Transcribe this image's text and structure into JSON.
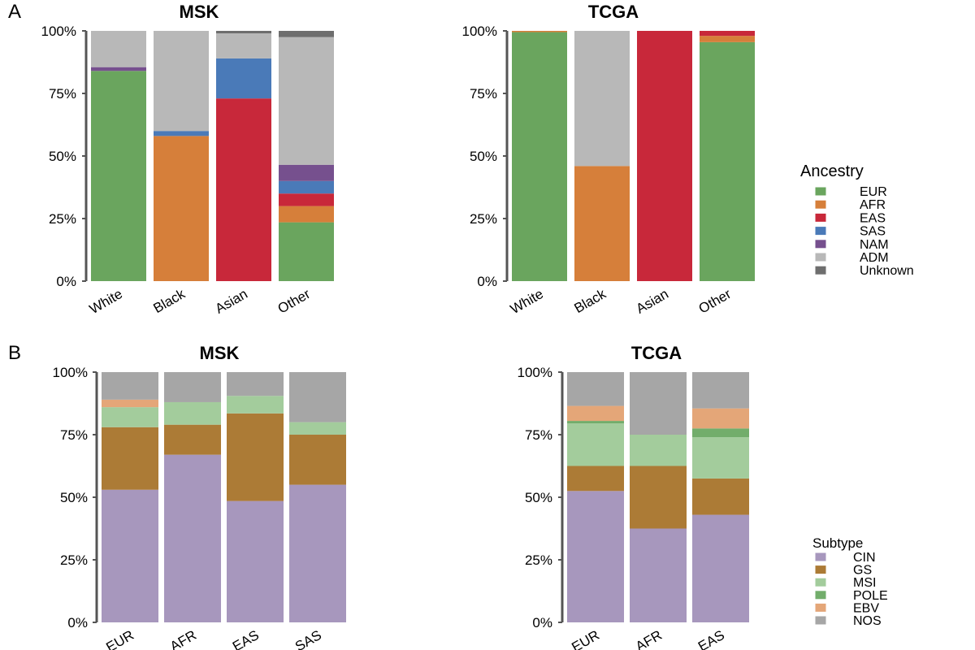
{
  "panels": [
    {
      "letter": "A"
    },
    {
      "letter": "B"
    }
  ],
  "legends": [
    {
      "title": "Ancestry",
      "items": [
        {
          "label": "EUR",
          "color": "#6aa55e"
        },
        {
          "label": "AFR",
          "color": "#d67f3a"
        },
        {
          "label": "EAS",
          "color": "#c8283a"
        },
        {
          "label": "SAS",
          "color": "#4a7ab8"
        },
        {
          "label": "NAM",
          "color": "#76508e"
        },
        {
          "label": "ADM",
          "color": "#b8b8b8"
        },
        {
          "label": "Unknown",
          "color": "#6e6e6e"
        }
      ]
    },
    {
      "title": "Subtype",
      "items": [
        {
          "label": "CIN",
          "color": "#a797bd"
        },
        {
          "label": "GS",
          "color": "#ac7b36"
        },
        {
          "label": "MSI",
          "color": "#a3cc9c"
        },
        {
          "label": "POLE",
          "color": "#72ad6b"
        },
        {
          "label": "EBV",
          "color": "#e4a678"
        },
        {
          "label": "NOS",
          "color": "#a6a6a6"
        }
      ]
    }
  ],
  "chart_data": [
    {
      "type": "bar",
      "stacked": true,
      "title": "MSK",
      "categories": [
        "White",
        "Black",
        "Asian",
        "Other"
      ],
      "ylim": [
        0,
        100
      ],
      "yticks": [
        "0%",
        "25%",
        "50%",
        "75%",
        "100%"
      ],
      "series": [
        {
          "name": "EUR",
          "values": [
            84,
            0,
            0,
            23.5
          ]
        },
        {
          "name": "AFR",
          "values": [
            0,
            58,
            0,
            6.5
          ]
        },
        {
          "name": "EAS",
          "values": [
            0,
            0,
            73,
            5
          ]
        },
        {
          "name": "SAS",
          "values": [
            0,
            2,
            16,
            5
          ]
        },
        {
          "name": "NAM",
          "values": [
            1.5,
            0,
            0,
            6.5
          ]
        },
        {
          "name": "ADM",
          "values": [
            14.5,
            40,
            10,
            51
          ]
        },
        {
          "name": "Unknown",
          "values": [
            0,
            0,
            1,
            2.5
          ]
        }
      ]
    },
    {
      "type": "bar",
      "stacked": true,
      "title": "TCGA",
      "categories": [
        "White",
        "Black",
        "Asian",
        "Other"
      ],
      "ylim": [
        0,
        100
      ],
      "yticks": [
        "0%",
        "25%",
        "50%",
        "75%",
        "100%"
      ],
      "series": [
        {
          "name": "EUR",
          "values": [
            99.5,
            0,
            0,
            95.5
          ]
        },
        {
          "name": "AFR",
          "values": [
            0.5,
            46,
            0,
            2.5
          ]
        },
        {
          "name": "EAS",
          "values": [
            0,
            0,
            100,
            2
          ]
        },
        {
          "name": "SAS",
          "values": [
            0,
            0,
            0,
            0
          ]
        },
        {
          "name": "NAM",
          "values": [
            0,
            0,
            0,
            0
          ]
        },
        {
          "name": "ADM",
          "values": [
            0,
            54,
            0,
            0
          ]
        },
        {
          "name": "Unknown",
          "values": [
            0,
            0,
            0,
            0
          ]
        }
      ]
    },
    {
      "type": "bar",
      "stacked": true,
      "title": "MSK",
      "categories": [
        "EUR",
        "AFR",
        "EAS",
        "SAS"
      ],
      "ylim": [
        0,
        100
      ],
      "yticks": [
        "0%",
        "25%",
        "50%",
        "75%",
        "100%"
      ],
      "series": [
        {
          "name": "CIN",
          "values": [
            53,
            67,
            48.5,
            55
          ]
        },
        {
          "name": "GS",
          "values": [
            25,
            12,
            35,
            20
          ]
        },
        {
          "name": "MSI",
          "values": [
            8,
            9,
            7,
            5
          ]
        },
        {
          "name": "POLE",
          "values": [
            0,
            0,
            0,
            0
          ]
        },
        {
          "name": "EBV",
          "values": [
            3,
            0,
            0,
            0
          ]
        },
        {
          "name": "NOS",
          "values": [
            11,
            12,
            9.5,
            20
          ]
        }
      ]
    },
    {
      "type": "bar",
      "stacked": true,
      "title": "TCGA",
      "categories": [
        "EUR",
        "AFR",
        "EAS"
      ],
      "ylim": [
        0,
        100
      ],
      "yticks": [
        "0%",
        "25%",
        "50%",
        "75%",
        "100%"
      ],
      "series": [
        {
          "name": "CIN",
          "values": [
            52.5,
            37.5,
            43
          ]
        },
        {
          "name": "GS",
          "values": [
            10,
            25,
            14.5
          ]
        },
        {
          "name": "MSI",
          "values": [
            17,
            12.5,
            16.5
          ]
        },
        {
          "name": "POLE",
          "values": [
            1,
            0,
            3.5
          ]
        },
        {
          "name": "EBV",
          "values": [
            6,
            0,
            8
          ]
        },
        {
          "name": "NOS",
          "values": [
            13.5,
            25,
            14.5
          ]
        }
      ]
    }
  ]
}
